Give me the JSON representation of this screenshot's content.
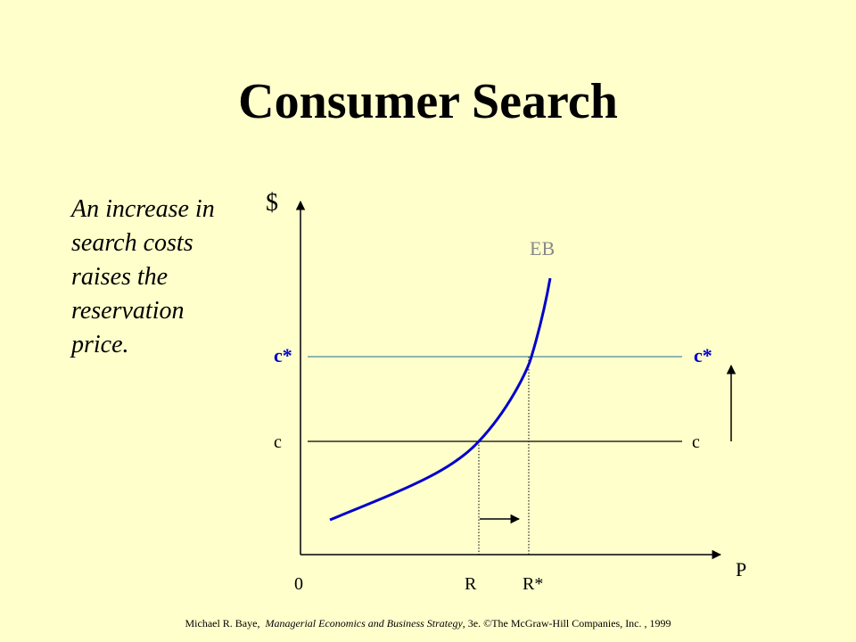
{
  "slide": {
    "title": "Consumer Search",
    "caption_lines": [
      "An increase in",
      "search costs",
      "raises the",
      "reservation",
      "price."
    ]
  },
  "diagram": {
    "y_axis_label": "$",
    "x_axis_label": "P",
    "origin_label": "0",
    "curve_label": "EB",
    "line_c_label_left": "c",
    "line_c_label_right": "c",
    "line_cstar_label_left": "c*",
    "line_cstar_label_right": "c*",
    "tick_r_label": "R",
    "tick_rstar_label": "R*",
    "colors": {
      "curve": "#0000CC",
      "cstar_line": "#4E8A9A",
      "cstar_text": "#0000CC",
      "eb_text": "#888888",
      "axes": "#000000"
    }
  },
  "footer": {
    "author": "Michael R. Baye,",
    "book": "Managerial Economics and Business Strategy",
    "rest": ", 3e. ©The McGraw-Hill Companies, Inc. , 1999"
  }
}
